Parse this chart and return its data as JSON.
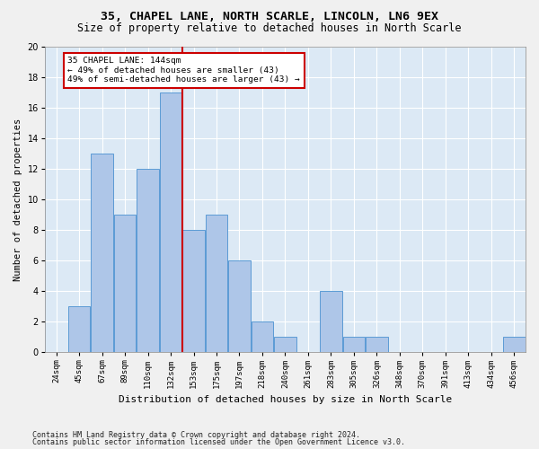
{
  "title1": "35, CHAPEL LANE, NORTH SCARLE, LINCOLN, LN6 9EX",
  "title2": "Size of property relative to detached houses in North Scarle",
  "xlabel": "Distribution of detached houses by size in North Scarle",
  "ylabel": "Number of detached properties",
  "footnote1": "Contains HM Land Registry data © Crown copyright and database right 2024.",
  "footnote2": "Contains public sector information licensed under the Open Government Licence v3.0.",
  "bin_labels": [
    "24sqm",
    "45sqm",
    "67sqm",
    "89sqm",
    "110sqm",
    "132sqm",
    "153sqm",
    "175sqm",
    "197sqm",
    "218sqm",
    "240sqm",
    "261sqm",
    "283sqm",
    "305sqm",
    "326sqm",
    "348sqm",
    "370sqm",
    "391sqm",
    "413sqm",
    "434sqm",
    "456sqm"
  ],
  "counts": [
    0,
    3,
    13,
    9,
    12,
    17,
    8,
    9,
    6,
    2,
    1,
    0,
    4,
    1,
    1,
    0,
    0,
    0,
    0,
    0,
    1
  ],
  "bar_color": "#aec6e8",
  "bar_edge_color": "#5b9bd5",
  "vline_bin_index": 5,
  "vline_color": "#cc0000",
  "annotation_text": "35 CHAPEL LANE: 144sqm\n← 49% of detached houses are smaller (43)\n49% of semi-detached houses are larger (43) →",
  "annotation_box_color": "#ffffff",
  "annotation_box_edge_color": "#cc0000",
  "ylim": [
    0,
    20
  ],
  "yticks": [
    0,
    2,
    4,
    6,
    8,
    10,
    12,
    14,
    16,
    18,
    20
  ],
  "background_color": "#dce9f5",
  "grid_color": "#ffffff",
  "title_fontsize": 9.5,
  "subtitle_fontsize": 8.5,
  "axis_label_fontsize": 8,
  "tick_fontsize": 6.5,
  "ylabel_fontsize": 7.5
}
